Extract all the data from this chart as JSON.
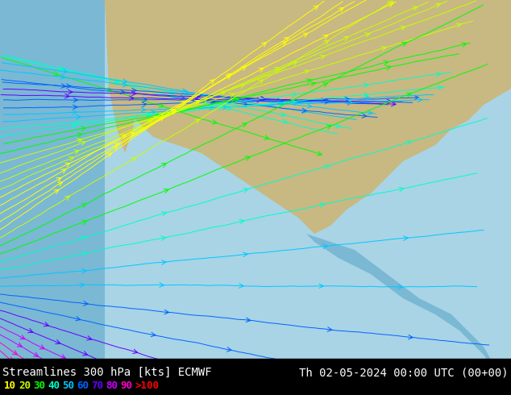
{
  "title_left": "Streamlines 300 hPa [kts] ECMWF",
  "title_right": "Th 02-05-2024 00:00 UTC (00+00)",
  "legend_values": [
    "10",
    "20",
    "30",
    "40",
    "50",
    "60",
    "70",
    "80",
    "90",
    ">100"
  ],
  "legend_colors": [
    "#ffff00",
    "#c8ff00",
    "#00ff00",
    "#00ffc8",
    "#00c8ff",
    "#0064ff",
    "#6400ff",
    "#c800ff",
    "#ff00c8",
    "#ff0000"
  ],
  "bg_color": "#87ceeb",
  "land_color": "#d2b48c",
  "text_color": "#ffffff",
  "title_fontsize": 10,
  "legend_fontsize": 9,
  "fig_width": 6.34,
  "fig_height": 4.9,
  "dpi": 100
}
